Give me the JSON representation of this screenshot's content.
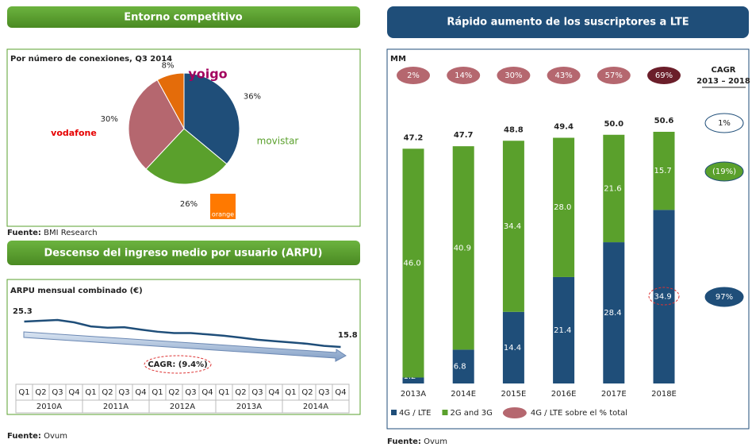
{
  "chart_data": [
    {
      "type": "pie",
      "title": "Entorno competitivo",
      "subtitle": "Por número de conexiones, Q3 2014",
      "categories": [
        "movistar",
        "orange",
        "vodafone",
        "yoigo"
      ],
      "values": [
        36,
        26,
        30,
        8
      ],
      "value_labels": [
        "36%",
        "26%",
        "30%",
        "8%"
      ],
      "colors": [
        "#1f4e79",
        "#5aa02c",
        "#b5676f",
        "#e46c0a"
      ],
      "source_label": "Fuente:",
      "source": "BMI Research"
    },
    {
      "type": "line",
      "title": "Descenso del ingreso medio por usuario (ARPU)",
      "subtitle": "ARPU mensual combinado (€)",
      "categories": [
        "Q1",
        "Q2",
        "Q3",
        "Q4",
        "Q1",
        "Q2",
        "Q3",
        "Q4",
        "Q1",
        "Q2",
        "Q3",
        "Q4",
        "Q1",
        "Q2",
        "Q3",
        "Q4",
        "Q1",
        "Q2",
        "Q3",
        "Q4"
      ],
      "groups": [
        "2010A",
        "2011A",
        "2012A",
        "2013A",
        "2014A"
      ],
      "values": [
        25.3,
        25.6,
        25.9,
        25.0,
        23.5,
        23.0,
        23.2,
        22.3,
        21.5,
        21.0,
        21.0,
        20.5,
        20.0,
        19.3,
        18.5,
        18.0,
        17.5,
        17.0,
        16.2,
        15.8
      ],
      "color": "#1f4e79",
      "annotation": "CAGR: (9.4%)",
      "source_label": "Fuente:",
      "source": "Ovum"
    },
    {
      "type": "stacked_bar",
      "title": "Rápido aumento de los suscriptores a LTE",
      "unit": "MM",
      "categories": [
        "2013A",
        "2014E",
        "2015E",
        "2016E",
        "2017E",
        "2018E"
      ],
      "series": [
        {
          "name": "4G / LTE",
          "color": "#1f4e79",
          "values": [
            1.2,
            6.8,
            14.4,
            21.4,
            28.4,
            34.9
          ]
        },
        {
          "name": "2G and 3G",
          "color": "#5aa02c",
          "values": [
            46.0,
            40.9,
            34.4,
            28.0,
            21.6,
            15.7
          ],
          "value_labels": [
            "46.0",
            "40.9",
            "34.4",
            "28.0",
            "21.6",
            "15.7"
          ]
        }
      ],
      "totals": [
        47.2,
        47.7,
        48.8,
        49.4,
        50.0,
        50.6
      ],
      "total_labels": [
        "47.2",
        "47.7",
        "48.8",
        "49.4",
        "50.0",
        "50.6"
      ],
      "share": {
        "name": "4G / LTE sobre el % total",
        "values": [
          2,
          14,
          30,
          43,
          57,
          69
        ],
        "value_labels": [
          "2%",
          "14%",
          "30%",
          "43%",
          "57%",
          "69%"
        ],
        "colors": [
          "#b5676f",
          "#b5676f",
          "#b5676f",
          "#b5676f",
          "#b5676f",
          "#6b1e2a"
        ]
      },
      "cagr": {
        "title": "CAGR",
        "subtitle": "2013 – 2018",
        "values": [
          1,
          -19,
          97
        ],
        "value_labels": [
          "1%",
          "(19%)",
          "97%"
        ],
        "colors": [
          "#ffffff",
          "#5aa02c",
          "#1f4e79"
        ]
      },
      "source_label": "Fuente:",
      "source": "Ovum"
    }
  ]
}
